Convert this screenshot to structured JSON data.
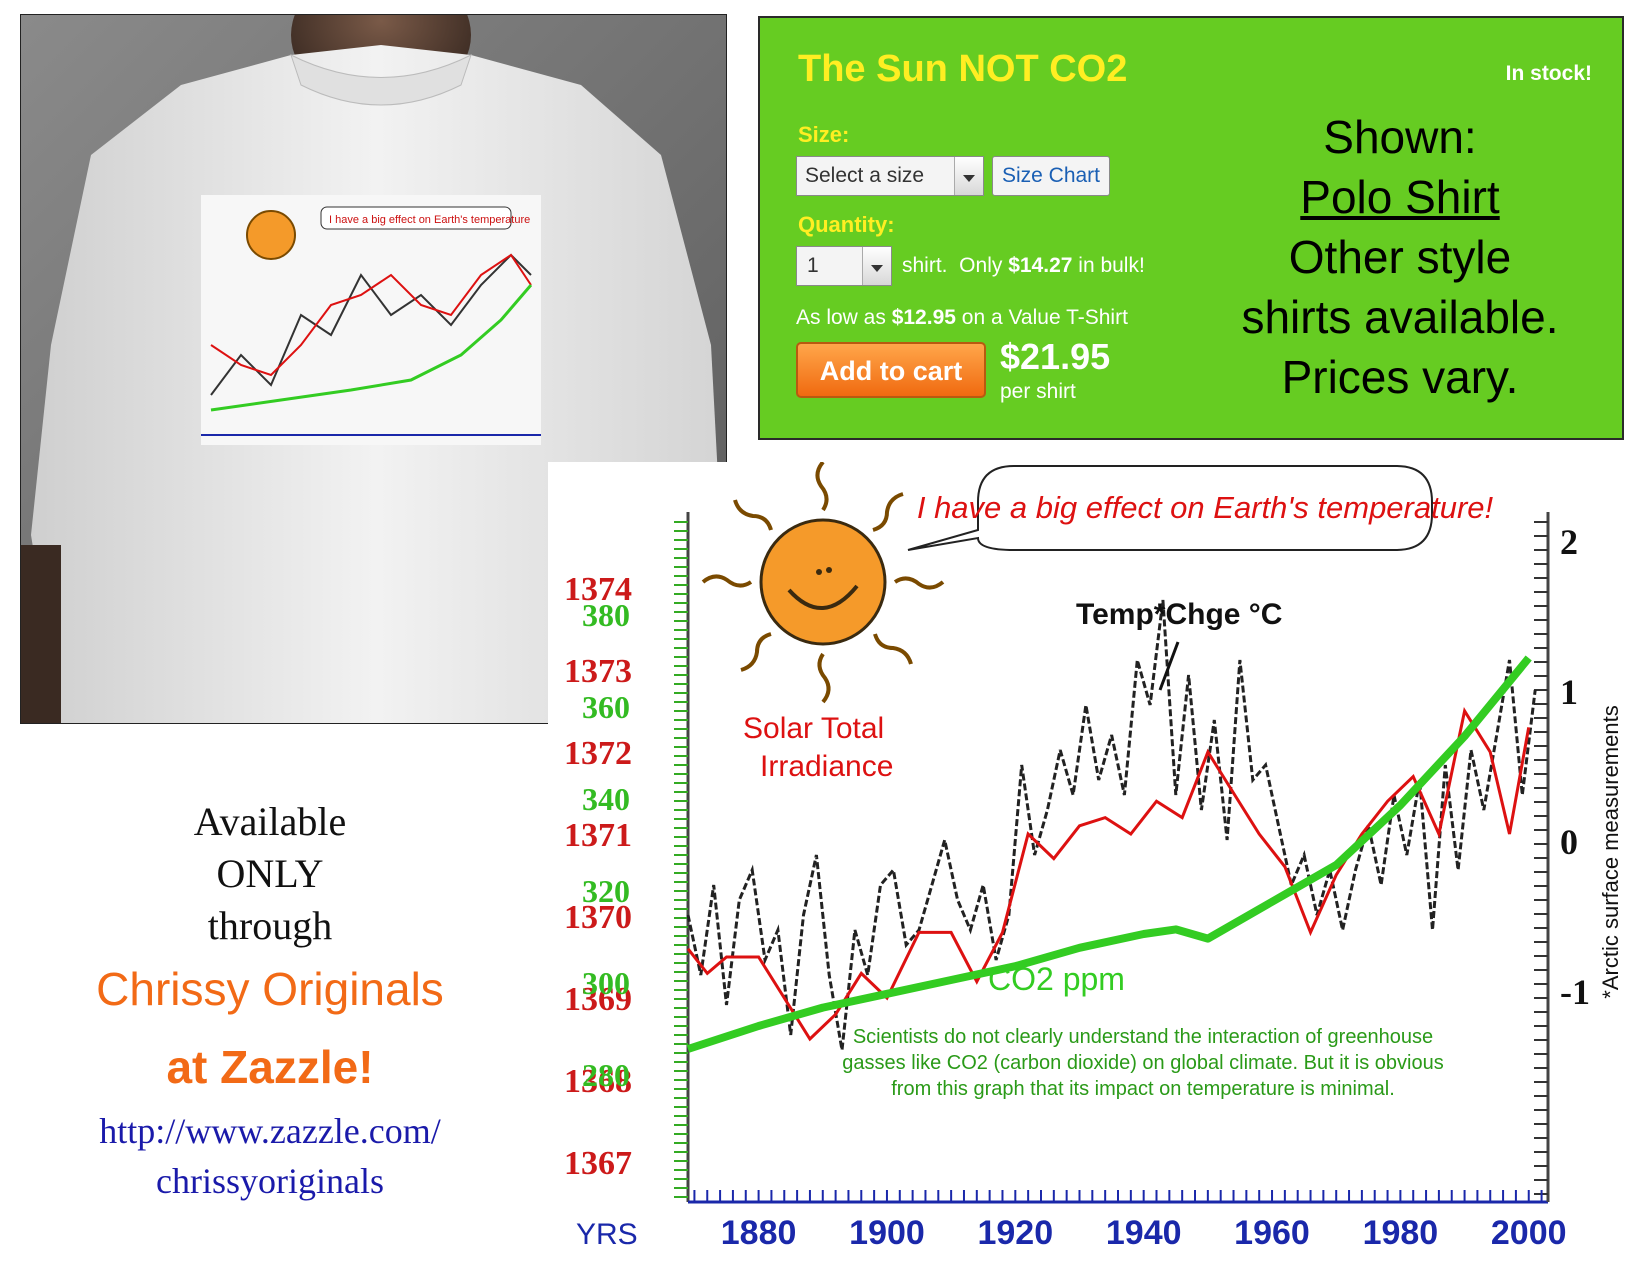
{
  "product": {
    "title": "The Sun NOT CO2",
    "stock": "In stock!",
    "size_label": "Size:",
    "size_select": "Select a size",
    "size_chart": "Size Chart",
    "quantity_label": "Quantity:",
    "quantity_value": "1",
    "bulk_prefix": "shirt.  Only ",
    "bulk_price": "$14.27",
    "bulk_suffix": " in bulk!",
    "value_prefix": "As low as ",
    "value_price": "$12.95",
    "value_suffix": " on a Value T-Shirt",
    "add_to_cart": "Add to cart",
    "price": "$21.95",
    "per_shirt": "per shirt",
    "colors": {
      "panel_bg": "#66cc22",
      "title": "#ffee22",
      "button": "#f47a1a"
    }
  },
  "shown": {
    "line1": "Shown:",
    "link": "Polo Shirt",
    "line3": "Other style",
    "line4": "shirts available.",
    "line5": "Prices vary."
  },
  "promo": {
    "line1": "Available",
    "line2": "ONLY",
    "line3": "through",
    "brand1": "Chrissy Originals",
    "brand2": "at Zazzle!",
    "url1": "http://www.zazzle.com/",
    "url2": "chrissyoriginals"
  },
  "chart_data": {
    "type": "line",
    "speech_bubble": "I have a big effect on Earth's temperature!",
    "x_axis_label": "YRS",
    "x_ticks": [
      "1880",
      "1900",
      "1920",
      "1940",
      "1960",
      "1980",
      "2000"
    ],
    "xlim": [
      1869,
      2003
    ],
    "left_axis_irradiance_ticks": [
      "1374",
      "1373",
      "1372",
      "1371",
      "1370",
      "1369",
      "1368",
      "1367"
    ],
    "left_axis_co2_ticks": [
      "380",
      "360",
      "340",
      "320",
      "300",
      "280"
    ],
    "right_axis_temp_ticks": [
      "2",
      "1",
      "0",
      "-1"
    ],
    "right_axis_label": "*Arctic surface measurements",
    "note": "Scientists do not clearly understand the interaction of greenhouse gasses like CO2 (carbon dioxide) on global climate. But it is obvious from this graph that its impact on temperature is minimal.",
    "series": [
      {
        "name": "Solar Total Irradiance",
        "color": "#dd1111",
        "x": [
          1869,
          1872,
          1875,
          1880,
          1884,
          1888,
          1892,
          1896,
          1900,
          1905,
          1910,
          1914,
          1918,
          1922,
          1926,
          1930,
          1934,
          1938,
          1942,
          1946,
          1950,
          1954,
          1958,
          1962,
          1966,
          1970,
          1974,
          1978,
          1982,
          1986,
          1990,
          1994,
          1997,
          2000
        ],
        "y": [
          1369.6,
          1369.3,
          1369.5,
          1369.5,
          1369.0,
          1368.5,
          1368.8,
          1369.3,
          1369.0,
          1369.8,
          1369.8,
          1369.2,
          1369.8,
          1371.0,
          1370.7,
          1371.1,
          1371.2,
          1371.0,
          1371.4,
          1371.2,
          1372.0,
          1371.5,
          1371.0,
          1370.6,
          1369.8,
          1370.5,
          1371.0,
          1371.4,
          1371.7,
          1371.0,
          1372.5,
          1372.0,
          1371.0,
          1372.3
        ]
      },
      {
        "name": "CO2 ppm",
        "color": "#33cc22",
        "x": [
          1869,
          1880,
          1890,
          1900,
          1910,
          1920,
          1930,
          1940,
          1945,
          1950,
          1960,
          1970,
          1980,
          1990,
          2000
        ],
        "y": [
          285,
          290,
          294,
          297,
          300,
          303,
          307,
          310,
          311,
          309,
          317,
          325,
          338,
          353,
          370
        ]
      },
      {
        "name": "Temp*Chge °C",
        "color": "#222222",
        "x": [
          1869,
          1871,
          1873,
          1875,
          1877,
          1879,
          1881,
          1883,
          1885,
          1887,
          1889,
          1891,
          1893,
          1895,
          1897,
          1899,
          1901,
          1903,
          1905,
          1907,
          1909,
          1911,
          1913,
          1915,
          1917,
          1919,
          1921,
          1923,
          1925,
          1927,
          1929,
          1931,
          1933,
          1935,
          1937,
          1939,
          1941,
          1943,
          1945,
          1947,
          1949,
          1951,
          1953,
          1955,
          1957,
          1959,
          1961,
          1963,
          1965,
          1967,
          1969,
          1971,
          1973,
          1975,
          1977,
          1979,
          1981,
          1983,
          1985,
          1987,
          1989,
          1991,
          1993,
          1995,
          1997,
          1999,
          2001
        ],
        "y": [
          -0.5,
          -0.9,
          -0.3,
          -1.1,
          -0.4,
          -0.2,
          -0.8,
          -0.6,
          -1.3,
          -0.5,
          -0.1,
          -0.9,
          -1.4,
          -0.6,
          -0.9,
          -0.3,
          -0.2,
          -0.7,
          -0.6,
          -0.3,
          0.0,
          -0.4,
          -0.6,
          -0.3,
          -0.8,
          -0.5,
          0.5,
          -0.1,
          0.2,
          0.6,
          0.3,
          0.9,
          0.4,
          0.7,
          0.3,
          1.2,
          0.9,
          1.6,
          0.3,
          1.1,
          0.2,
          0.8,
          0.0,
          1.2,
          0.4,
          0.5,
          0.1,
          -0.3,
          -0.1,
          -0.5,
          -0.2,
          -0.6,
          -0.2,
          0.1,
          -0.3,
          0.3,
          -0.1,
          0.4,
          -0.6,
          0.5,
          -0.2,
          0.6,
          0.2,
          0.7,
          1.2,
          0.3,
          1.0
        ]
      }
    ]
  }
}
